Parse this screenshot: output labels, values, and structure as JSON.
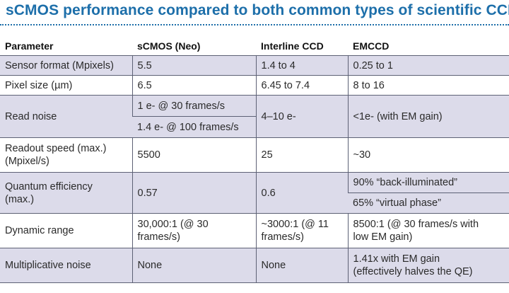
{
  "title": "sCMOS performance compared to both common types of scientific CCDs",
  "headers": [
    "Parameter",
    "sCMOS (Neo)",
    "Interline CCD",
    "EMCCD"
  ],
  "rows": {
    "sensor_format": [
      "Sensor format (Mpixels)",
      "5.5",
      "1.4 to 4",
      "0.25 to 1"
    ],
    "pixel_size": [
      "Pixel size (µm)",
      "6.5",
      "6.45 to 7.4",
      "8 to 16"
    ],
    "read_noise": {
      "param": "Read noise",
      "scmos_a": "1 e- @ 30 frames/s",
      "scmos_b": "1.4 e- @ 100 frames/s",
      "interline": "4–10 e-",
      "emccd": "<1e- (with EM gain)"
    },
    "readout_speed": {
      "param_line1": "Readout speed (max.)",
      "param_line2": "(Mpixel/s)",
      "scmos": "5500",
      "interline": "25",
      "emccd": "~30"
    },
    "quantum_efficiency": {
      "param_line1": "Quantum efficiency",
      "param_line2": "(max.)",
      "scmos": "0.57",
      "interline": "0.6",
      "emccd_a": "90%  “back-illuminated”",
      "emccd_b": "65%  “virtual phase”"
    },
    "dynamic_range": {
      "param": "Dynamic range",
      "scmos_line1": "30,000:1 (@ 30",
      "scmos_line2": "frames/s)",
      "interline_line1": "~3000:1 (@ 11",
      "interline_line2": "frames/s)",
      "emccd_line1": "8500:1 (@ 30 frames/s with",
      "emccd_line2": "low EM gain)"
    },
    "multiplicative_noise": {
      "param": "Multiplicative noise",
      "scmos": "None",
      "interline": "None",
      "emccd_line1": "1.41x with EM gain",
      "emccd_line2": "(effectively halves the QE)"
    }
  },
  "colors": {
    "title": "#1d6faa",
    "row_shade": "#dcdbea",
    "grid": "#5d6175"
  }
}
